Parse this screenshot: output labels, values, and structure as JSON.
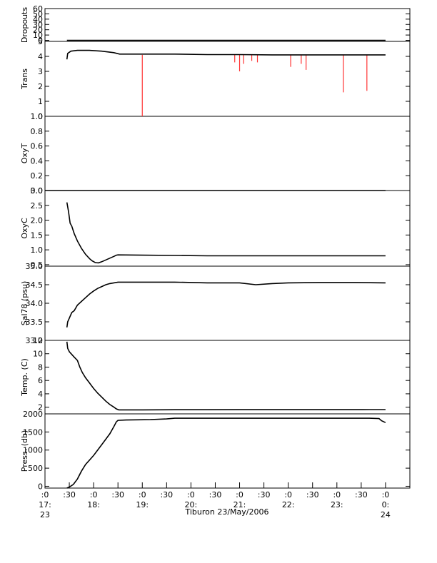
{
  "chart_data": {
    "type": "line",
    "xlabel": "Tiburon 23/May/2006",
    "x_ticks": [
      {
        "t": 0,
        "l1": ":0",
        "l2": "17:",
        "l3": "23"
      },
      {
        "t": 30,
        "l1": ":30",
        "l2": "",
        "l3": ""
      },
      {
        "t": 60,
        "l1": ":0",
        "l2": "18:",
        "l3": ""
      },
      {
        "t": 90,
        "l1": ":30",
        "l2": "",
        "l3": ""
      },
      {
        "t": 120,
        "l1": ":0",
        "l2": "19:",
        "l3": ""
      },
      {
        "t": 150,
        "l1": ":30",
        "l2": "",
        "l3": ""
      },
      {
        "t": 180,
        "l1": ":0",
        "l2": "20:",
        "l3": ""
      },
      {
        "t": 210,
        "l1": ":30",
        "l2": "",
        "l3": ""
      },
      {
        "t": 240,
        "l1": ":0",
        "l2": "21:",
        "l3": ""
      },
      {
        "t": 270,
        "l1": ":30",
        "l2": "",
        "l3": ""
      },
      {
        "t": 300,
        "l1": ":0",
        "l2": "22:",
        "l3": ""
      },
      {
        "t": 330,
        "l1": ":30",
        "l2": "",
        "l3": ""
      },
      {
        "t": 360,
        "l1": ":0",
        "l2": "23:",
        "l3": ""
      },
      {
        "t": 390,
        "l1": ":30",
        "l2": "",
        "l3": ""
      },
      {
        "t": 420,
        "l1": ":0",
        "l2": "0:",
        "l3": "24"
      }
    ],
    "xlim": [
      0,
      450
    ],
    "panels": [
      {
        "name": "dropouts",
        "ylabel": "Dropouts",
        "ylim": [
          -2,
          60
        ],
        "ticks": [
          0,
          10,
          20,
          30,
          40,
          50,
          60
        ],
        "tick_labels": [
          "0",
          "10",
          "20",
          "30",
          "40",
          "50",
          "60"
        ],
        "series": [
          {
            "x": [
              27,
              420
            ],
            "y": [
              0,
              0
            ]
          }
        ]
      },
      {
        "name": "trans",
        "ylabel": "Trans",
        "ylim": [
          0,
          5
        ],
        "ticks": [
          0,
          1,
          2,
          3,
          4,
          5
        ],
        "tick_labels": [
          "0",
          "1",
          "2",
          "3",
          "4",
          "5"
        ],
        "spikes": [
          {
            "x": 120,
            "y": 0.0
          },
          {
            "x": 234,
            "y": 3.6
          },
          {
            "x": 240,
            "y": 3.0
          },
          {
            "x": 245,
            "y": 3.5
          },
          {
            "x": 255,
            "y": 3.7
          },
          {
            "x": 262,
            "y": 3.6
          },
          {
            "x": 303,
            "y": 3.3
          },
          {
            "x": 316,
            "y": 3.5
          },
          {
            "x": 322,
            "y": 3.1
          },
          {
            "x": 368,
            "y": 1.6
          },
          {
            "x": 397,
            "y": 1.7
          }
        ],
        "series": [
          {
            "x": [
              27,
              28,
              32,
              40,
              55,
              70,
              85,
              92,
              120,
              160,
              200,
              240,
              280,
              320,
              360,
              400,
              420
            ],
            "y": [
              3.8,
              4.2,
              4.35,
              4.4,
              4.4,
              4.35,
              4.25,
              4.15,
              4.15,
              4.15,
              4.12,
              4.12,
              4.1,
              4.1,
              4.1,
              4.1,
              4.1
            ]
          }
        ]
      },
      {
        "name": "oxyt",
        "ylabel": "OxyT",
        "ylim": [
          0,
          1.0
        ],
        "ticks": [
          0.0,
          0.2,
          0.4,
          0.6,
          0.8,
          1.0
        ],
        "tick_labels": [
          "0.0",
          "0.2",
          "0.4",
          "0.6",
          "0.8",
          "1.0"
        ],
        "series": [
          {
            "x": [
              0,
              420
            ],
            "y": [
              0,
              0
            ]
          }
        ]
      },
      {
        "name": "oxyc",
        "ylabel": "OxyC",
        "ylim": [
          0.45,
          3.0
        ],
        "ticks": [
          0.5,
          1.0,
          1.5,
          2.0,
          2.5,
          3.0
        ],
        "tick_labels": [
          "0.5",
          "1.0",
          "1.5",
          "2.0",
          "2.5",
          "3.0"
        ],
        "series": [
          {
            "x": [
              27,
              29,
              31,
              33,
              36,
              40,
              45,
              50,
              55,
              58,
              62,
              66,
              70,
              75,
              80,
              85,
              88,
              90,
              120,
              160,
              200,
              240,
              280,
              320,
              360,
              400,
              420
            ],
            "y": [
              2.6,
              2.3,
              1.9,
              1.8,
              1.55,
              1.3,
              1.05,
              0.85,
              0.7,
              0.63,
              0.57,
              0.56,
              0.6,
              0.66,
              0.72,
              0.78,
              0.82,
              0.83,
              0.82,
              0.81,
              0.8,
              0.8,
              0.8,
              0.8,
              0.8,
              0.8,
              0.8
            ]
          }
        ]
      },
      {
        "name": "sal78",
        "ylabel": "Sal78 (psu)",
        "ylim": [
          33.0,
          35.0
        ],
        "ticks": [
          33.0,
          33.5,
          34.0,
          34.5,
          35.0
        ],
        "tick_labels": [
          "33.0",
          "33.5",
          "34.0",
          "34.5",
          "35.0"
        ],
        "series": [
          {
            "x": [
              27,
              28,
              30,
              33,
              36,
              40,
              45,
              50,
              55,
              60,
              65,
              70,
              75,
              80,
              85,
              90,
              120,
              160,
              200,
              240,
              260,
              280,
              300,
              340,
              380,
              420
            ],
            "y": [
              33.35,
              33.5,
              33.6,
              33.75,
              33.8,
              33.95,
              34.05,
              34.15,
              34.25,
              34.33,
              34.4,
              34.45,
              34.5,
              34.53,
              34.55,
              34.57,
              34.57,
              34.57,
              34.55,
              34.55,
              34.5,
              34.53,
              34.55,
              34.56,
              34.56,
              34.55
            ]
          }
        ]
      },
      {
        "name": "temp",
        "ylabel": "Temp. (C)",
        "ylim": [
          1.0,
          12.0
        ],
        "ticks": [
          2,
          4,
          6,
          8,
          10,
          12
        ],
        "tick_labels": [
          "2",
          "4",
          "6",
          "8",
          "10",
          "12"
        ],
        "series": [
          {
            "x": [
              27,
              28,
              30,
              33,
              36,
              40,
              43,
              46,
              50,
              55,
              60,
              65,
              70,
              75,
              80,
              85,
              88,
              91,
              120,
              160,
              200,
              240,
              280,
              320,
              360,
              400,
              420
            ],
            "y": [
              11.8,
              10.8,
              10.3,
              9.9,
              9.5,
              9.0,
              8.0,
              7.2,
              6.4,
              5.6,
              4.8,
              4.1,
              3.5,
              2.9,
              2.4,
              2.0,
              1.75,
              1.6,
              1.6,
              1.62,
              1.62,
              1.63,
              1.63,
              1.63,
              1.63,
              1.64,
              1.64
            ]
          }
        ]
      },
      {
        "name": "press",
        "ylabel": "Press. (db)",
        "ylim": [
          -50,
          2000
        ],
        "ticks": [
          0,
          500,
          1000,
          1500,
          2000
        ],
        "tick_labels": [
          "0",
          "500",
          "1000",
          "1500",
          "2000"
        ],
        "series": [
          {
            "x": [
              27,
              30,
              35,
              40,
              45,
              50,
              60,
              70,
              80,
              85,
              88,
              90,
              100,
              130,
              150,
              160,
              200,
              240,
              280,
              320,
              360,
              400,
              412,
              415,
              418,
              420
            ],
            "y": [
              -50,
              -20,
              50,
              200,
              420,
              600,
              850,
              1150,
              1450,
              1650,
              1780,
              1820,
              1830,
              1840,
              1860,
              1880,
              1880,
              1880,
              1880,
              1880,
              1880,
              1880,
              1870,
              1810,
              1780,
              1760
            ]
          }
        ]
      }
    ]
  }
}
